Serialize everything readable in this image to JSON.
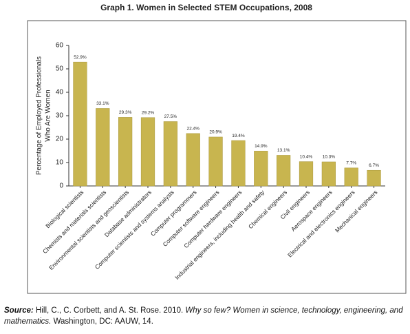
{
  "chart_data": {
    "type": "bar",
    "title": "Graph 1. Women in Selected STEM Occupations, 2008",
    "y_label": [
      "Percentage of Employed Professionals",
      "Who Are Women"
    ],
    "categories": [
      "Biological scientists",
      "Chemists and materials scientists",
      "Environmental scientists and geoscientists",
      "Database administrators",
      "Computer scientists and systems analysts",
      "Computer programmers",
      "Computer software engineers",
      "Computer hardware engineers",
      "Industrial engineers, including health and safety",
      "Chemical engineers",
      "Civil engineers",
      "Aerospace engineers",
      "Electrical and electronics engineers",
      "Mechanical engineers"
    ],
    "values": [
      52.9,
      33.1,
      29.3,
      29.2,
      27.5,
      22.4,
      20.9,
      19.4,
      14.9,
      13.1,
      10.4,
      10.3,
      7.7,
      6.7
    ],
    "value_labels": [
      "52.9%",
      "33.1%",
      "29.3%",
      "29.2%",
      "27.5%",
      "22.4%",
      "20.9%",
      "19.4%",
      "14.9%",
      "13.1%",
      "10.4%",
      "10.3%",
      "7.7%",
      "6.7%"
    ],
    "color": "#c8b54f",
    "ylim": [
      0,
      60
    ],
    "yticks": [
      0,
      10,
      20,
      30,
      40,
      50,
      60
    ],
    "grid": false
  },
  "source": {
    "label": "Source:",
    "authors": "Hill, C., C. Corbett, and A. St. Rose. 2010.",
    "work": "Why so few? Women in science, technology, engineering, and mathematics.",
    "publisher": "Washington, DC: AAUW, 14."
  }
}
